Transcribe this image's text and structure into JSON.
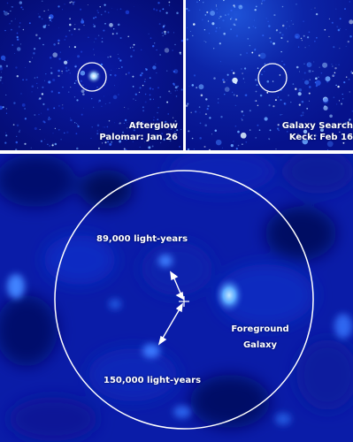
{
  "panels": {
    "afterglow": {
      "line1": "Afterglow",
      "line2": "Palomar: Jan 26"
    },
    "galaxy_search": {
      "line1": "Galaxy Search",
      "line2": "Keck: Feb 16"
    }
  },
  "main": {
    "label_top": "89,000 light-years",
    "label_bottom": "150,000 light-years",
    "foreground_line1": "Foreground",
    "foreground_line2": "Galaxy"
  },
  "colors": {
    "sky": "#06118c",
    "glow": "#3f8bff",
    "star": "#d8f0ff",
    "line": "#ffffff"
  }
}
